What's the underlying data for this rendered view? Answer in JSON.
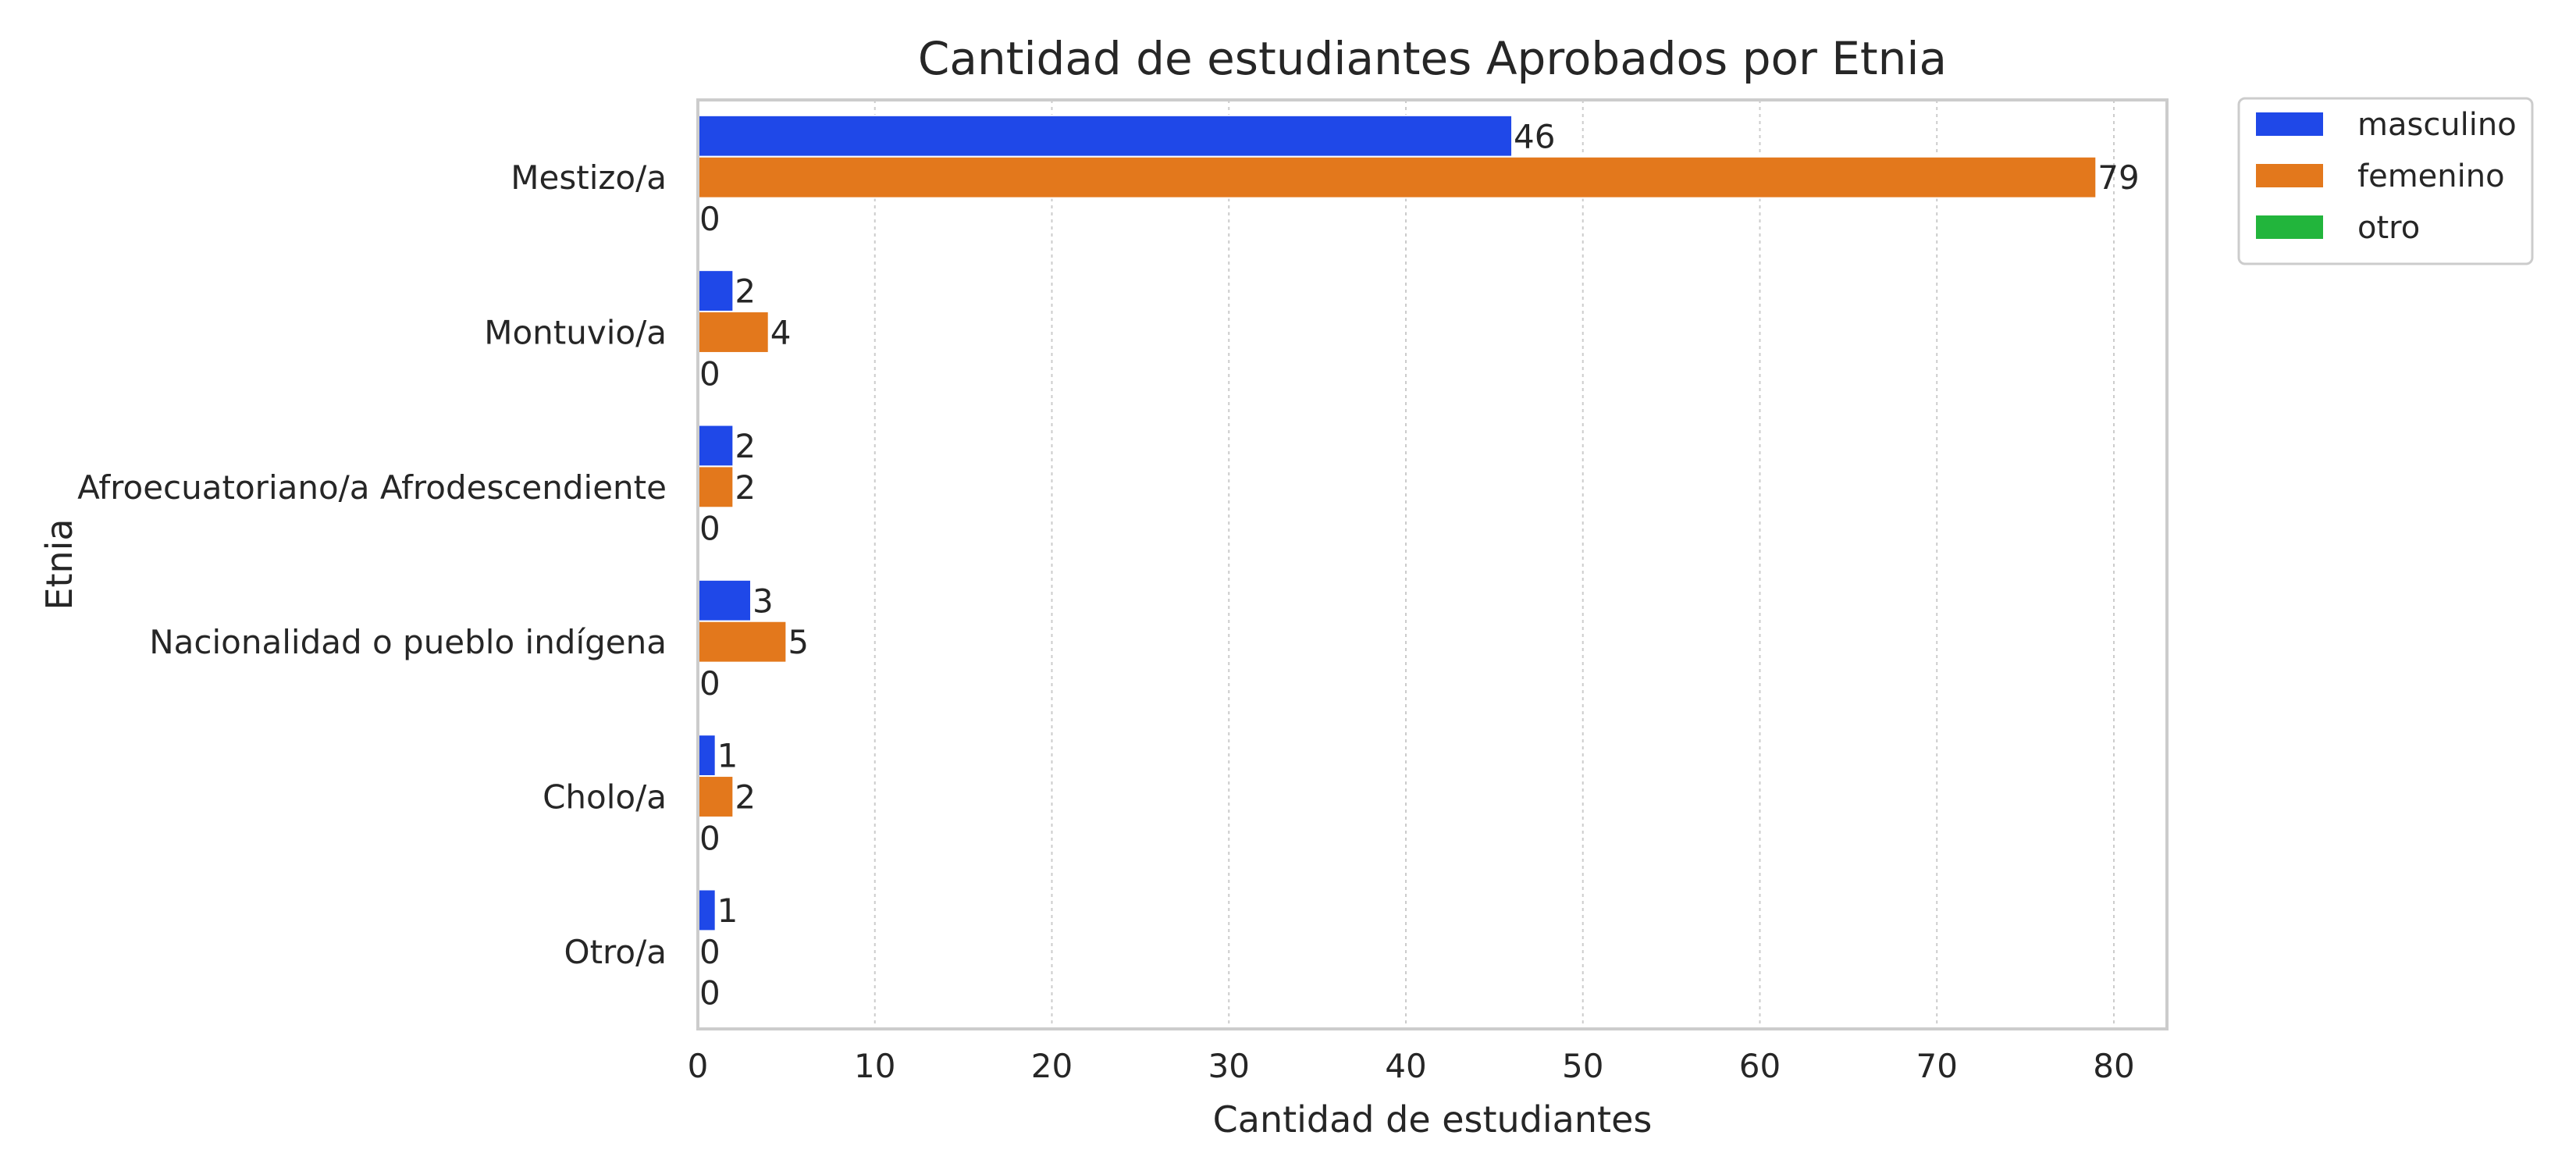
{
  "chart_data": {
    "type": "bar",
    "orientation": "horizontal",
    "title": "Cantidad de estudiantes Aprobados por Etnia",
    "xlabel": "Cantidad de estudiantes",
    "ylabel": "Etnia",
    "xlim": [
      0,
      83
    ],
    "xticks": [
      0,
      10,
      20,
      30,
      40,
      50,
      60,
      70,
      80
    ],
    "grid": "x (dotted)",
    "legend_position": "outside top-right",
    "categories": [
      "Mestizo/a",
      "Montuvio/a",
      "Afroecuatoriano/a Afrodescendiente",
      "Nacionalidad o pueblo indígena",
      "Cholo/a",
      "Otro/a"
    ],
    "series": [
      {
        "name": "masculino",
        "color": "#1f48e8",
        "values": [
          46,
          2,
          2,
          3,
          1,
          1
        ]
      },
      {
        "name": "femenino",
        "color": "#e3781c",
        "values": [
          79,
          4,
          2,
          5,
          2,
          0
        ]
      },
      {
        "name": "otro",
        "color": "#22b53c",
        "values": [
          0,
          0,
          0,
          0,
          0,
          0
        ]
      }
    ]
  }
}
